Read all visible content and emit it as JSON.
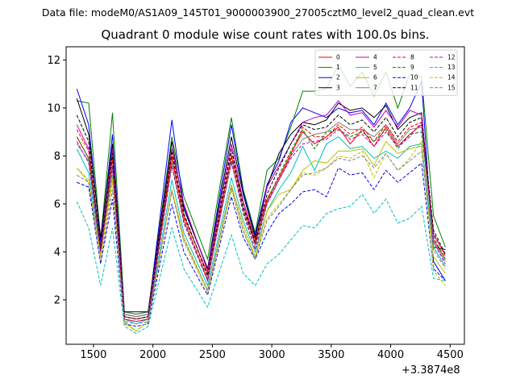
{
  "header": {
    "suptitle": "Data file: modeM0/AS1A09_145T01_9000003900_27005cztM0_level2_quad_clean.evt",
    "title": "Quadrant 0 module wise count rates with 100.0s bins."
  },
  "chart_data": {
    "type": "line",
    "title": "Quadrant 0 module wise count rates with 100.0s bins.",
    "xlabel": "",
    "ylabel": "",
    "x_offset_label": "+3.3874e8",
    "xlim": [
      1270,
      4620
    ],
    "ylim": [
      0.15,
      12.55
    ],
    "xticks": [
      1500,
      2000,
      2500,
      3000,
      3500,
      4000,
      4500
    ],
    "yticks": [
      2,
      4,
      6,
      8,
      10,
      12
    ],
    "grid": false,
    "legend_position": "top-right",
    "legend_columns": 4,
    "x": [
      1360,
      1460,
      1560,
      1660,
      1760,
      1860,
      1960,
      2160,
      2260,
      2460,
      2660,
      2760,
      2860,
      2960,
      3060,
      3160,
      3260,
      3360,
      3460,
      3560,
      3660,
      3760,
      3860,
      3960,
      4060,
      4160,
      4260,
      4360,
      4460
    ],
    "series": [
      {
        "name": "0",
        "color": "#ff0000",
        "dash": false,
        "values": [
          8.8,
          7.9,
          4.3,
          7.9,
          1.3,
          1.2,
          1.3,
          8.0,
          5.5,
          3.1,
          8.0,
          6.1,
          4.5,
          6.2,
          7.1,
          8.1,
          9.0,
          8.5,
          8.8,
          9.2,
          8.5,
          9.1,
          8.4,
          9.2,
          8.4,
          8.9,
          9.3,
          4.5,
          3.7
        ]
      },
      {
        "name": "1",
        "color": "#008000",
        "dash": false,
        "values": [
          10.3,
          10.2,
          4.5,
          9.8,
          1.5,
          1.4,
          1.5,
          8.8,
          6.3,
          3.7,
          9.6,
          6.6,
          4.8,
          7.4,
          7.9,
          9.2,
          10.7,
          10.7,
          10.8,
          11.8,
          10.9,
          11.5,
          10.5,
          11.5,
          10.0,
          11.4,
          11.3,
          5.5,
          4.2
        ]
      },
      {
        "name": "2",
        "color": "#0000ff",
        "dash": false,
        "values": [
          10.8,
          9.3,
          4.4,
          8.9,
          1.4,
          1.3,
          1.4,
          9.5,
          5.9,
          3.3,
          9.3,
          6.5,
          4.7,
          6.8,
          7.8,
          9.4,
          10.0,
          9.8,
          9.6,
          10.0,
          9.8,
          9.9,
          9.3,
          10.2,
          9.3,
          10.0,
          11.1,
          3.6,
          2.8
        ]
      },
      {
        "name": "3",
        "color": "#000000",
        "dash": false,
        "values": [
          10.4,
          8.9,
          4.6,
          8.5,
          1.5,
          1.5,
          1.5,
          8.6,
          5.8,
          3.3,
          8.8,
          6.4,
          4.6,
          6.7,
          8.1,
          8.9,
          9.4,
          9.3,
          9.5,
          10.2,
          9.9,
          10.0,
          9.6,
          10.1,
          9.1,
          9.6,
          9.8,
          4.2,
          4.1
        ]
      },
      {
        "name": "4",
        "color": "#bf00bf",
        "dash": false,
        "values": [
          9.3,
          8.3,
          4.2,
          8.3,
          1.4,
          1.3,
          1.4,
          8.3,
          6.0,
          3.2,
          8.5,
          6.1,
          4.3,
          6.7,
          7.6,
          8.5,
          9.4,
          9.6,
          9.7,
          10.3,
          9.7,
          9.8,
          9.2,
          9.9,
          9.2,
          9.9,
          9.7,
          4.7,
          3.9
        ]
      },
      {
        "name": "5",
        "color": "#00bfbf",
        "dash": false,
        "values": [
          8.3,
          7.3,
          3.9,
          7.2,
          1.2,
          1.0,
          1.2,
          7.0,
          4.8,
          2.6,
          7.1,
          5.3,
          4.0,
          5.7,
          6.6,
          7.3,
          8.4,
          7.4,
          8.5,
          8.8,
          8.3,
          8.4,
          7.9,
          8.2,
          7.9,
          8.4,
          8.5,
          4.2,
          3.4
        ]
      },
      {
        "name": "6",
        "color": "#bfbf00",
        "dash": false,
        "values": [
          7.5,
          6.9,
          3.9,
          7.1,
          1.1,
          0.7,
          1.1,
          6.6,
          4.6,
          2.4,
          6.8,
          5.1,
          3.8,
          5.7,
          6.4,
          6.6,
          7.4,
          7.8,
          7.7,
          8.2,
          8.2,
          8.3,
          7.6,
          8.6,
          8.1,
          8.3,
          8.4,
          3.8,
          3.1
        ]
      },
      {
        "name": "7",
        "color": "#808080",
        "dash": false,
        "values": [
          8.5,
          7.8,
          4.1,
          7.5,
          1.4,
          1.3,
          1.4,
          7.6,
          5.3,
          2.9,
          7.7,
          5.8,
          4.3,
          6.0,
          7.0,
          8.0,
          8.7,
          8.9,
          9.0,
          9.4,
          9.1,
          9.1,
          8.8,
          9.3,
          8.5,
          9.1,
          9.2,
          4.4,
          3.6
        ]
      },
      {
        "name": "8",
        "color": "#ff0000",
        "dash": true,
        "values": [
          9.1,
          8.2,
          4.0,
          7.9,
          1.2,
          1.1,
          1.2,
          7.9,
          5.4,
          2.8,
          8.1,
          5.8,
          4.3,
          6.1,
          7.0,
          8.0,
          9.2,
          8.8,
          8.8,
          9.3,
          8.9,
          9.2,
          8.6,
          9.3,
          8.6,
          9.2,
          9.4,
          4.8,
          3.8
        ]
      },
      {
        "name": "9",
        "color": "#008000",
        "dash": true,
        "values": [
          8.8,
          7.9,
          4.1,
          7.6,
          1.2,
          1.1,
          1.2,
          7.7,
          5.2,
          2.8,
          7.9,
          5.7,
          4.1,
          6.1,
          7.2,
          8.2,
          9.1,
          8.3,
          9.0,
          9.1,
          8.8,
          9.0,
          8.6,
          9.1,
          8.3,
          8.9,
          9.0,
          4.6,
          3.7
        ]
      },
      {
        "name": "10",
        "color": "#0000ff",
        "dash": true,
        "values": [
          6.9,
          6.7,
          3.5,
          6.2,
          1.0,
          0.9,
          1.0,
          6.0,
          4.0,
          2.2,
          6.3,
          4.6,
          3.7,
          4.8,
          5.6,
          6.0,
          6.5,
          6.6,
          6.3,
          7.5,
          7.2,
          7.3,
          6.6,
          7.4,
          6.9,
          7.3,
          7.7,
          3.3,
          2.8
        ]
      },
      {
        "name": "11",
        "color": "#000000",
        "dash": true,
        "values": [
          9.7,
          8.6,
          4.1,
          8.1,
          1.3,
          1.2,
          1.3,
          8.2,
          5.6,
          3.0,
          8.3,
          5.9,
          4.4,
          6.4,
          7.5,
          8.5,
          9.3,
          9.1,
          9.2,
          9.7,
          9.3,
          9.5,
          9.0,
          9.6,
          8.8,
          9.4,
          9.6,
          4.9,
          3.9
        ]
      },
      {
        "name": "12",
        "color": "#bf00bf",
        "dash": true,
        "values": [
          8.6,
          7.7,
          4.0,
          7.5,
          1.2,
          1.1,
          1.2,
          7.6,
          5.2,
          2.8,
          7.8,
          5.6,
          4.1,
          6.0,
          7.0,
          7.9,
          8.5,
          8.6,
          8.7,
          9.1,
          8.7,
          8.9,
          8.4,
          9.0,
          8.4,
          8.8,
          9.4,
          4.4,
          3.5
        ]
      },
      {
        "name": "13",
        "color": "#00bfbf",
        "dash": true,
        "values": [
          6.1,
          5.0,
          2.6,
          5.0,
          0.9,
          0.6,
          0.9,
          5.0,
          3.3,
          1.7,
          4.7,
          3.1,
          2.6,
          3.5,
          3.9,
          4.5,
          5.1,
          5.0,
          5.6,
          5.8,
          5.9,
          6.4,
          5.6,
          6.2,
          5.2,
          5.4,
          5.9,
          2.9,
          2.8
        ]
      },
      {
        "name": "14",
        "color": "#bfbf00",
        "dash": true,
        "values": [
          7.5,
          7.0,
          3.8,
          6.9,
          1.0,
          0.7,
          1.1,
          6.6,
          4.4,
          2.3,
          6.6,
          4.8,
          3.8,
          5.4,
          6.0,
          6.6,
          7.3,
          7.2,
          7.5,
          8.0,
          7.9,
          8.2,
          7.1,
          8.1,
          7.4,
          7.9,
          8.6,
          3.2,
          2.6
        ]
      },
      {
        "name": "15",
        "color": "#808080",
        "dash": true,
        "values": [
          7.2,
          6.9,
          3.6,
          6.6,
          1.1,
          1.0,
          1.1,
          6.5,
          4.5,
          2.4,
          6.7,
          4.9,
          3.7,
          5.3,
          5.9,
          6.6,
          7.2,
          7.3,
          7.5,
          7.9,
          7.8,
          8.0,
          7.5,
          8.1,
          7.4,
          7.8,
          8.2,
          4.1,
          3.3
        ]
      }
    ]
  }
}
